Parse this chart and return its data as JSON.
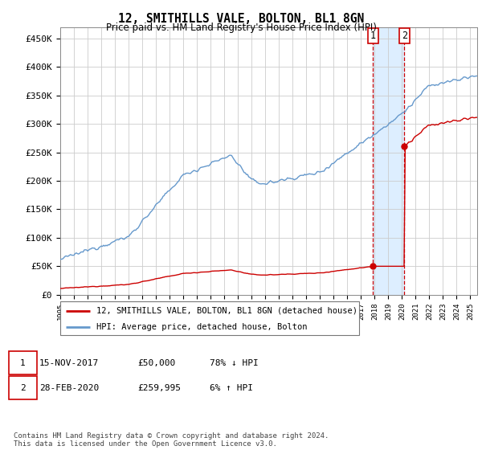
{
  "title": "12, SMITHILLS VALE, BOLTON, BL1 8GN",
  "subtitle": "Price paid vs. HM Land Registry's House Price Index (HPI)",
  "ylabel_ticks": [
    "£0",
    "£50K",
    "£100K",
    "£150K",
    "£200K",
    "£250K",
    "£300K",
    "£350K",
    "£400K",
    "£450K"
  ],
  "ytick_values": [
    0,
    50000,
    100000,
    150000,
    200000,
    250000,
    300000,
    350000,
    400000,
    450000
  ],
  "ylim": [
    0,
    470000
  ],
  "xlim_start": 1995.0,
  "xlim_end": 2025.5,
  "hpi_color": "#6699cc",
  "price_color": "#cc0000",
  "highlight_color": "#ddeeff",
  "dashed_color": "#cc0000",
  "transaction1_year": 2017.88,
  "transaction1_price": 50000,
  "transaction2_year": 2020.17,
  "transaction2_price": 259995,
  "legend_entries": [
    "12, SMITHILLS VALE, BOLTON, BL1 8GN (detached house)",
    "HPI: Average price, detached house, Bolton"
  ],
  "table_row1": [
    "1",
    "15-NOV-2017",
    "£50,000",
    "78% ↓ HPI"
  ],
  "table_row2": [
    "2",
    "28-FEB-2020",
    "£259,995",
    "6% ↑ HPI"
  ],
  "footer": "Contains HM Land Registry data © Crown copyright and database right 2024.\nThis data is licensed under the Open Government Licence v3.0.",
  "background_color": "#ffffff",
  "grid_color": "#cccccc"
}
